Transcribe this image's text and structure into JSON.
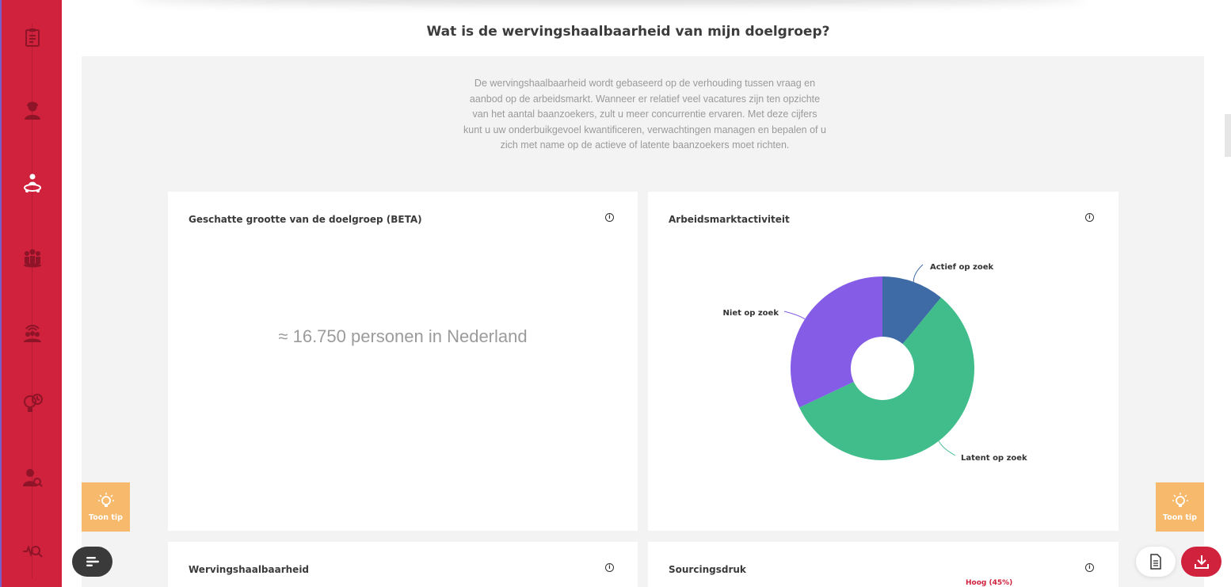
{
  "page": {
    "title": "Wat is de wervingshaalbaarheid van mijn doelgroep?",
    "intro": "De wervingshaalbaarheid wordt gebaseerd op de verhouding tussen vraag en aanbod op de arbeidsmarkt. Wanneer er relatief veel vacatures zijn ten opzichte van het aantal baanzoekers, zult u meer concurrentie ervaren. Met deze cijfers kunt u uw onderbuikgevoel kwantificeren, verwachtingen managen en bepalen of u zich met name op de actieve of latente baanzoekers moet richten."
  },
  "sidebar": {
    "items": [
      {
        "icon": "clipboard-icon"
      },
      {
        "icon": "person-icon"
      },
      {
        "icon": "person-target-icon",
        "active": true
      },
      {
        "icon": "group-icon"
      },
      {
        "icon": "group-signal-icon"
      },
      {
        "icon": "lightbulb-clock-icon"
      },
      {
        "icon": "person-search-icon"
      },
      {
        "icon": "search-pulse-icon"
      }
    ]
  },
  "cards": {
    "size": {
      "title": "Geschatte grootte van de doelgroep (BETA)",
      "value": "≈ 16.750 personen in Nederland"
    },
    "activity": {
      "title": "Arbeidsmarktactiviteit"
    },
    "feasibility": {
      "title": "Wervingshaalbaarheid"
    },
    "sourcing": {
      "title": "Sourcingsdruk",
      "partial_label": "Hoog (45%)"
    }
  },
  "tips": {
    "label": "Toon tip"
  },
  "colors": {
    "brand": "#d0213d",
    "tip": "#f7b96b",
    "actief": "#3e6aa6",
    "latent": "#41bd8b",
    "niet": "#845ce6"
  },
  "chart_data": {
    "type": "pie",
    "title": "Arbeidsmarktactiviteit",
    "categories": [
      "Actief op zoek",
      "Latent op zoek",
      "Niet op zoek"
    ],
    "values": [
      11,
      57,
      32
    ],
    "donut": true,
    "start": "top, clockwise"
  }
}
